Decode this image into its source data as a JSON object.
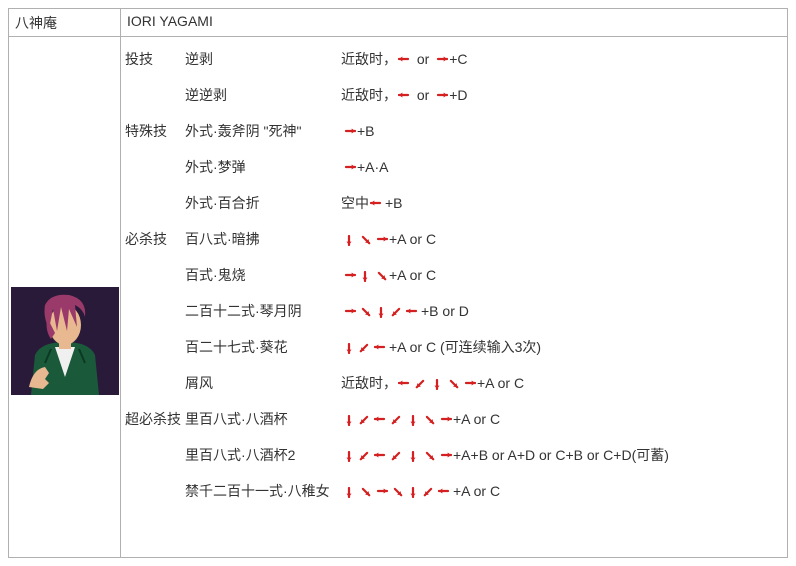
{
  "character": {
    "name_jp": "八神庵",
    "name_en": "IORI YAGAMI"
  },
  "colors": {
    "arrow": "#d42020",
    "text": "#333333",
    "border": "#b0b0b0",
    "portrait_hair": "#9a3a6a",
    "portrait_skin": "#e8b890",
    "portrait_jacket": "#1a5a3a",
    "portrait_shirt": "#f0f0f0",
    "portrait_bg1": "#3a2a4a",
    "portrait_bg2": "#1a1228"
  },
  "categories": {
    "throw": "投技",
    "command": "特殊技",
    "special": "必杀技",
    "super": "超必杀技"
  },
  "moves": [
    {
      "cat": "throw",
      "name": "逆剥",
      "pre": "近敌时，",
      "arrows": [
        "l",
        "or",
        "r"
      ],
      "post": "+C"
    },
    {
      "cat": "",
      "name": "逆逆剥",
      "pre": "近敌时，",
      "arrows": [
        "l",
        "or",
        "r"
      ],
      "post": "+D"
    },
    {
      "cat": "command",
      "name": "外式·轰斧阴 \"死神\"",
      "pre": "",
      "arrows": [
        "r"
      ],
      "post": "+B"
    },
    {
      "cat": "",
      "name": "外式·梦弹",
      "pre": "",
      "arrows": [
        "r"
      ],
      "post": "+A·A"
    },
    {
      "cat": "",
      "name": "外式·百合折",
      "pre": "空中",
      "arrows": [
        "l"
      ],
      "post": "+B"
    },
    {
      "cat": "special",
      "name": "百八式·暗拂",
      "pre": "",
      "arrows": [
        "d",
        "dr",
        "r"
      ],
      "post": "+A or C"
    },
    {
      "cat": "",
      "name": "百式·鬼烧",
      "pre": "",
      "arrows": [
        "r",
        "d",
        "dr"
      ],
      "post": "+A or C"
    },
    {
      "cat": "",
      "name": "二百十二式·琴月阴",
      "pre": "",
      "arrows": [
        "r",
        "dr",
        "d",
        "dl",
        "l"
      ],
      "post": "+B or D"
    },
    {
      "cat": "",
      "name": "百二十七式·葵花",
      "pre": "",
      "arrows": [
        "d",
        "dl",
        "l"
      ],
      "post": "+A or C (可连续输入3次)"
    },
    {
      "cat": "",
      "name": "屑风",
      "pre": "近敌时，",
      "arrows": [
        "l",
        "dl",
        "d",
        "dr",
        "r"
      ],
      "post": "+A or C"
    },
    {
      "cat": "super",
      "name": "里百八式·八酒杯",
      "pre": "",
      "arrows": [
        "d",
        "dl",
        "l",
        "dl",
        "d",
        "dr",
        "r"
      ],
      "post": "+A or C"
    },
    {
      "cat": "",
      "name": "里百八式·八酒杯2",
      "pre": "",
      "arrows": [
        "d",
        "dl",
        "l",
        "dl",
        "d",
        "dr",
        "r"
      ],
      "post": "+A+B or A+D or C+B or C+D(可蓄)"
    },
    {
      "cat": "",
      "name": "禁千二百十一式·八稚女",
      "pre": "",
      "arrows": [
        "d",
        "dr",
        "r",
        "dr",
        "d",
        "dl",
        "l"
      ],
      "post": "+A or C"
    }
  ]
}
